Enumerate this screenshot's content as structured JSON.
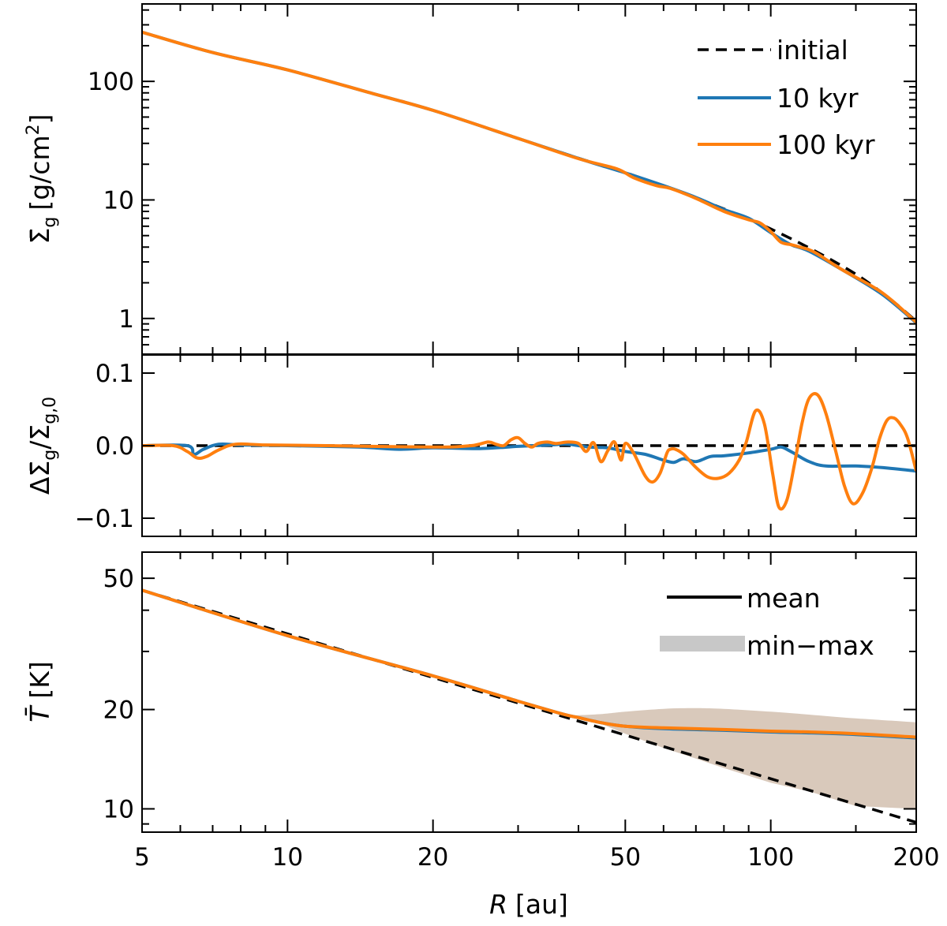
{
  "colors": {
    "initial": "#000000",
    "kyr10": "#1f77b4",
    "kyr100": "#ff7f0e",
    "band": "#c8c8c8",
    "band_fill": "#d9c9bb"
  },
  "x_axis": {
    "label_var": "R",
    "label_unit": "[au]",
    "scale": "log",
    "xlim": [
      5,
      200
    ],
    "ticks": [
      5,
      10,
      20,
      50,
      100,
      200
    ],
    "tick_labels": [
      "5",
      "10",
      "20",
      "50",
      "100",
      "200"
    ]
  },
  "chart_data": [
    {
      "type": "line",
      "panel": "top",
      "ylabel_sym": "Σ̄",
      "ylabel_sub": "g",
      "ylabel_unit": "[g/cm",
      "ylabel_sup": "2",
      "ylabel_end": "]",
      "yscale": "log",
      "ylim": [
        0.5,
        450
      ],
      "yticks": [
        1,
        10,
        100
      ],
      "ytick_labels": [
        "1",
        "10",
        "100"
      ],
      "legend": {
        "placement": "top-right",
        "entries": [
          "initial",
          "10 kyr",
          "100 kyr"
        ]
      },
      "series": [
        {
          "name": "initial",
          "style": "dashed",
          "x": [
            5,
            7,
            10,
            15,
            20,
            30,
            40,
            50,
            70,
            100,
            140,
            170,
            200
          ],
          "y": [
            260,
            175,
            125,
            79,
            57,
            33,
            22.5,
            17,
            10.4,
            5.7,
            2.8,
            1.65,
            0.95
          ]
        },
        {
          "name": "10 kyr",
          "style": "solid",
          "x": [
            5,
            7,
            10,
            15,
            20,
            30,
            40,
            50,
            60,
            70,
            80,
            90,
            100,
            110,
            120,
            140,
            170,
            200
          ],
          "y": [
            260,
            175,
            125,
            79,
            57,
            33,
            22.4,
            16.9,
            13.2,
            10.5,
            8.3,
            7.0,
            5.3,
            4.2,
            3.7,
            2.6,
            1.6,
            0.92
          ]
        },
        {
          "name": "100 kyr",
          "style": "solid",
          "x": [
            5,
            7,
            10,
            15,
            20,
            30,
            40,
            48,
            52,
            58,
            62,
            70,
            80,
            90,
            95,
            100,
            105,
            110,
            115,
            120,
            125,
            140,
            170,
            200
          ],
          "y": [
            260,
            175,
            125,
            79,
            57,
            33,
            22.3,
            18.3,
            15.4,
            13.2,
            12.5,
            10.3,
            8.0,
            6.8,
            6.4,
            5.4,
            4.4,
            4.2,
            4.0,
            3.8,
            3.5,
            2.6,
            1.65,
            0.93
          ]
        }
      ]
    },
    {
      "type": "line",
      "panel": "middle",
      "ylabel_sym": "ΔΣ̄",
      "ylabel_sub": "g",
      "ylabel_mid": "/Σ",
      "ylabel_sub2": "g,0",
      "yscale": "linear",
      "ylim": [
        -0.125,
        0.125
      ],
      "yticks": [
        -0.1,
        0.0,
        0.1
      ],
      "ytick_labels": [
        "−0.1",
        "0.0",
        "0.1"
      ],
      "series": [
        {
          "name": "initial",
          "style": "dashed",
          "x": [
            5,
            200
          ],
          "y": [
            0,
            0
          ]
        },
        {
          "name": "10 kyr",
          "style": "solid",
          "x": [
            5,
            6.2,
            6.4,
            6.7,
            7.2,
            8,
            10,
            14,
            17,
            20,
            25,
            30,
            35,
            38,
            42,
            46,
            50,
            55,
            60,
            63,
            66,
            70,
            75,
            80,
            90,
            100,
            105,
            110,
            120,
            130,
            150,
            175,
            200
          ],
          "y": [
            0,
            0,
            -0.012,
            -0.005,
            0.002,
            0.001,
            0,
            -0.002,
            -0.005,
            -0.003,
            -0.004,
            -0.001,
            0.001,
            0.002,
            -0.002,
            -0.003,
            -0.008,
            -0.012,
            -0.02,
            -0.023,
            -0.018,
            -0.022,
            -0.015,
            -0.014,
            -0.01,
            -0.005,
            -0.002,
            -0.008,
            -0.022,
            -0.028,
            -0.028,
            -0.031,
            -0.035
          ]
        }
      ]
    },
    {
      "type": "area",
      "panel": "bottom",
      "ylabel_sym": "T̄",
      "ylabel_unit": "[K]",
      "yscale": "log",
      "ylim": [
        8.5,
        60
      ],
      "yticks": [
        10,
        20,
        50
      ],
      "ytick_labels": [
        "10",
        "20",
        "50"
      ],
      "legend": {
        "placement": "top-right",
        "entries": [
          "mean",
          "min−max"
        ]
      },
      "series": [
        {
          "name": "initial",
          "style": "dashed",
          "x": [
            5,
            200
          ],
          "y": [
            46,
            9.1
          ]
        },
        {
          "name": "band",
          "style": "fill",
          "x": [
            39,
            45,
            50,
            60,
            70,
            80,
            100,
            120,
            150,
            200
          ],
          "y_min": [
            19.1,
            18.0,
            16.9,
            15.3,
            14.2,
            13.3,
            12.0,
            11.3,
            10.2,
            10.0
          ],
          "y_max": [
            19.2,
            19.4,
            19.7,
            20.1,
            20.2,
            20.1,
            19.7,
            19.3,
            18.8,
            18.3
          ]
        },
        {
          "name": "mean",
          "style": "solid",
          "x": [
            5,
            10,
            20,
            30,
            37,
            40,
            45,
            50,
            60,
            80,
            100,
            120,
            150,
            200
          ],
          "y": [
            46,
            33.5,
            25.3,
            21.2,
            19.4,
            18.9,
            18.2,
            17.8,
            17.6,
            17.4,
            17.2,
            17.1,
            16.9,
            16.5
          ]
        }
      ]
    }
  ],
  "middle_100kyr": {
    "x": [
      5,
      5.8,
      6.2,
      6.5,
      6.8,
      7.2,
      7.8,
      9,
      12,
      20,
      24,
      26,
      27,
      28,
      29,
      30,
      31,
      32,
      33,
      34.5,
      36,
      38,
      40,
      41.5,
      43,
      44.5,
      46,
      47.5,
      49,
      50,
      52,
      55,
      57,
      59,
      61,
      62,
      63.5,
      66,
      70,
      74,
      78,
      82,
      86,
      89,
      93,
      97,
      101,
      104,
      108,
      112,
      116,
      120,
      125,
      130,
      136,
      142,
      148,
      155,
      162,
      168,
      174,
      180,
      186,
      192,
      200
    ],
    "y": [
      0,
      0,
      -0.008,
      -0.017,
      -0.015,
      -0.006,
      0.002,
      0.001,
      0,
      -0.002,
      0,
      0.005,
      0.002,
      0,
      0.008,
      0.011,
      0.003,
      -0.002,
      0.003,
      0.005,
      0.003,
      0.005,
      0.003,
      -0.008,
      0.004,
      -0.022,
      -0.007,
      0.005,
      -0.02,
      0.003,
      -0.01,
      -0.042,
      -0.05,
      -0.038,
      -0.01,
      -0.005,
      -0.005,
      -0.012,
      -0.03,
      -0.043,
      -0.045,
      -0.038,
      -0.02,
      0.005,
      0.048,
      0.03,
      -0.04,
      -0.085,
      -0.075,
      -0.025,
      0.03,
      0.065,
      0.07,
      0.045,
      -0.005,
      -0.055,
      -0.08,
      -0.065,
      -0.03,
      0.01,
      0.035,
      0.038,
      0.028,
      0.01,
      -0.035
    ]
  },
  "bottom_10kyr_mean": {
    "x": [
      5,
      10,
      20,
      30,
      37,
      40,
      45,
      50,
      60,
      80,
      100,
      120,
      150,
      200
    ],
    "y": [
      46,
      33.5,
      25.3,
      21.2,
      19.4,
      18.9,
      18.2,
      17.8,
      17.5,
      17.3,
      17.1,
      17.0,
      16.8,
      16.4
    ]
  }
}
